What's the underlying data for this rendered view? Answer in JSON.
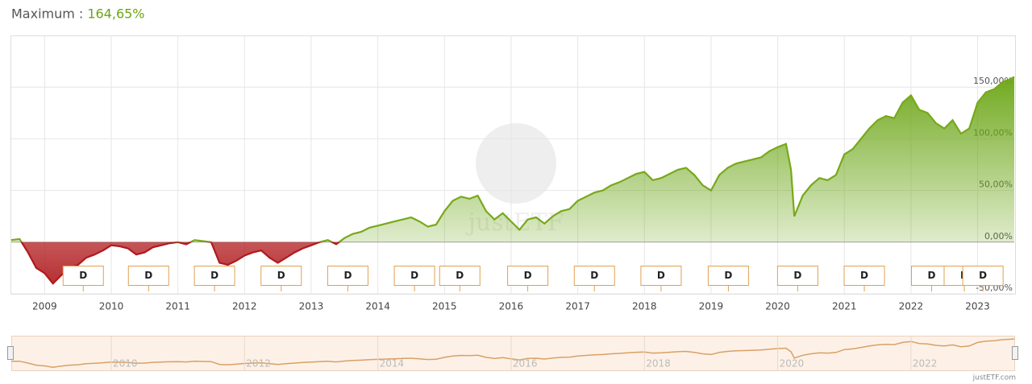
{
  "chart_data": {
    "type": "line",
    "title": "Maximum :",
    "maximum": "164,65%",
    "watermark": "justETF",
    "credit": "justETF.com",
    "x": [
      2008.5,
      2008.625,
      2008.75,
      2008.875,
      2009.0,
      2009.125,
      2009.25,
      2009.375,
      2009.5,
      2009.625,
      2009.75,
      2009.875,
      2010.0,
      2010.125,
      2010.25,
      2010.375,
      2010.5,
      2010.625,
      2010.75,
      2010.875,
      2011.0,
      2011.125,
      2011.25,
      2011.375,
      2011.5,
      2011.625,
      2011.75,
      2011.875,
      2012.0,
      2012.125,
      2012.25,
      2012.375,
      2012.5,
      2012.625,
      2012.75,
      2012.875,
      2013.0,
      2013.125,
      2013.25,
      2013.375,
      2013.5,
      2013.625,
      2013.75,
      2013.875,
      2014.0,
      2014.125,
      2014.25,
      2014.375,
      2014.5,
      2014.625,
      2014.75,
      2014.875,
      2015.0,
      2015.125,
      2015.25,
      2015.375,
      2015.5,
      2015.625,
      2015.75,
      2015.875,
      2016.0,
      2016.125,
      2016.25,
      2016.375,
      2016.5,
      2016.625,
      2016.75,
      2016.875,
      2017.0,
      2017.125,
      2017.25,
      2017.375,
      2017.5,
      2017.625,
      2017.75,
      2017.875,
      2018.0,
      2018.125,
      2018.25,
      2018.375,
      2018.5,
      2018.625,
      2018.75,
      2018.875,
      2019.0,
      2019.125,
      2019.25,
      2019.375,
      2019.5,
      2019.625,
      2019.75,
      2019.875,
      2020.0,
      2020.125,
      2020.2,
      2020.25,
      2020.375,
      2020.5,
      2020.625,
      2020.75,
      2020.875,
      2021.0,
      2021.125,
      2021.25,
      2021.375,
      2021.5,
      2021.625,
      2021.75,
      2021.875,
      2022.0,
      2022.125,
      2022.25,
      2022.375,
      2022.5,
      2022.625,
      2022.75,
      2022.875,
      2023.0,
      2023.125,
      2023.25,
      2023.375,
      2023.5,
      2023.55
    ],
    "series": [
      {
        "color": "#78a81a",
        "negative_color": "#b0191c",
        "values": [
          2,
          3,
          -10,
          -25,
          -30,
          -40,
          -32,
          -25,
          -22,
          -15,
          -12,
          -8,
          -3,
          -4,
          -6,
          -12,
          -10,
          -5,
          -3,
          -1,
          0,
          -2,
          2,
          1,
          0,
          -20,
          -22,
          -18,
          -13,
          -10,
          -8,
          -15,
          -20,
          -15,
          -10,
          -6,
          -3,
          0,
          2,
          -2,
          4,
          8,
          10,
          14,
          16,
          18,
          20,
          22,
          24,
          20,
          15,
          17,
          30,
          40,
          44,
          42,
          45,
          30,
          22,
          28,
          20,
          12,
          22,
          24,
          18,
          25,
          30,
          32,
          40,
          44,
          48,
          50,
          55,
          58,
          62,
          66,
          68,
          60,
          62,
          66,
          70,
          72,
          65,
          55,
          50,
          65,
          72,
          76,
          78,
          80,
          82,
          88,
          92,
          95,
          70,
          25,
          45,
          55,
          62,
          60,
          65,
          85,
          90,
          100,
          110,
          118,
          122,
          120,
          135,
          142,
          128,
          125,
          115,
          110,
          118,
          105,
          110,
          135,
          145,
          148,
          155,
          158,
          160
        ]
      }
    ],
    "xlim": [
      2008.5,
      2023.55
    ],
    "xticks": [
      2009,
      2010,
      2011,
      2012,
      2013,
      2014,
      2015,
      2016,
      2017,
      2018,
      2019,
      2020,
      2021,
      2022,
      2023
    ],
    "ylim": [
      -50,
      200
    ],
    "yticks": [
      {
        "value": -50,
        "label": "-50,00%"
      },
      {
        "value": 0,
        "label": "0,00%"
      },
      {
        "value": 50,
        "label": "50,00%"
      },
      {
        "value": 100,
        "label": "100,00%"
      },
      {
        "value": 150,
        "label": "150,00%"
      }
    ],
    "grid": true,
    "dividends": {
      "label": "D",
      "x": [
        2009.58,
        2010.56,
        2011.55,
        2012.55,
        2013.55,
        2014.55,
        2015.23,
        2016.25,
        2017.25,
        2018.25,
        2019.26,
        2020.3,
        2021.3,
        2022.31,
        2022.8,
        2023.08
      ]
    },
    "navigator": {
      "xticks": [
        2010,
        2012,
        2014,
        2016,
        2018,
        2020,
        2022
      ],
      "color": "#d9a066"
    }
  }
}
